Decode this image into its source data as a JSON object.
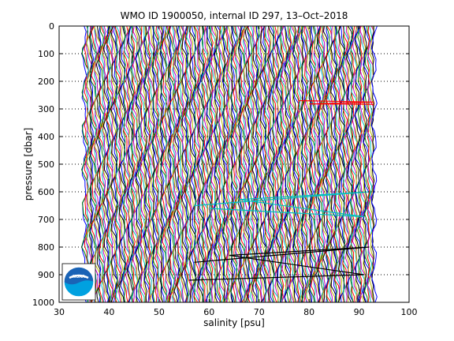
{
  "chart_data": {
    "type": "line",
    "title": "WMO ID 1900050, internal ID 297, 13–Oct–2018",
    "xlabel": "salinity [psu]",
    "ylabel": "pressure [dbar]",
    "xlim": [
      30,
      100
    ],
    "ylim": [
      0,
      1000
    ],
    "y_reversed": true,
    "grid": "dotted horizontal",
    "x_ticks": [
      "30",
      "40",
      "50",
      "60",
      "70",
      "80",
      "90",
      "100"
    ],
    "y_ticks": [
      "0",
      "100",
      "200",
      "300",
      "400",
      "500",
      "600",
      "700",
      "800",
      "900",
      "1000"
    ],
    "profiles": {
      "x_start": 35.0,
      "x_end": 93.0,
      "count": 260,
      "colors": [
        "#0000ff",
        "#008000",
        "#ff0000",
        "#00bfbf",
        "#bf00bf",
        "#bfbf00",
        "#000000"
      ]
    },
    "highlight_series": [
      {
        "color": "#ff0000",
        "points": [
          [
            78,
            270
          ],
          [
            93,
            275
          ],
          [
            80,
            282
          ],
          [
            93,
            283
          ]
        ]
      },
      {
        "color": "#00bfbf",
        "points": [
          [
            57,
            650
          ],
          [
            92,
            600
          ],
          [
            66,
            628
          ],
          [
            91,
            690
          ],
          [
            60,
            660
          ]
        ]
      },
      {
        "color": "#000000",
        "points": [
          [
            57,
            855
          ],
          [
            92,
            800
          ],
          [
            64,
            830
          ],
          [
            91,
            900
          ],
          [
            56,
            920
          ]
        ]
      }
    ]
  },
  "logo": {
    "text": "NOAA",
    "colors": [
      "#1a63b6",
      "#00a1e0"
    ]
  }
}
